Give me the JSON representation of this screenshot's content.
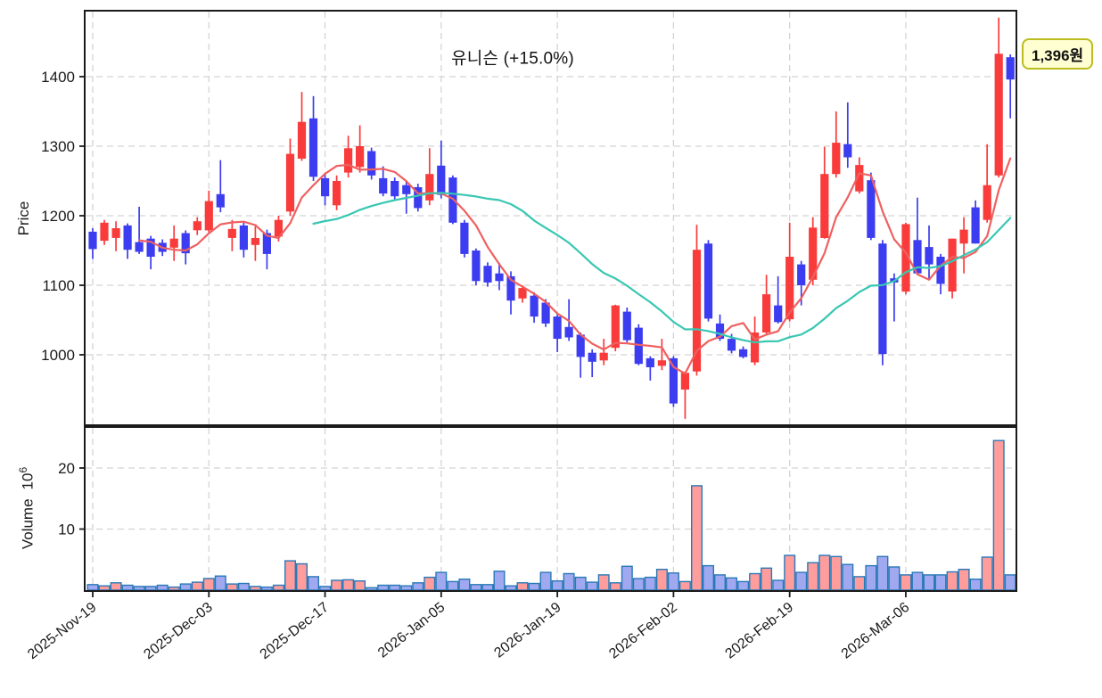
{
  "title": "유니슨 (+15.0%)",
  "price_badge": {
    "label": "1,396원"
  },
  "price_axis": {
    "label": "Price",
    "ticks": [
      1000,
      1100,
      1200,
      1300,
      1400
    ]
  },
  "volume_axis": {
    "label": "Volume",
    "scale_base": "10",
    "scale_exp": "6",
    "ticks": [
      10,
      20
    ]
  },
  "x_axis": {
    "tick_indices": [
      0,
      10,
      20,
      30,
      40,
      50,
      60,
      70
    ],
    "tick_labels": [
      "2025-Nov-19",
      "2025-Dec-03",
      "2025-Dec-17",
      "2026-Jan-05",
      "2026-Jan-19",
      "2026-Feb-02",
      "2026-Feb-19",
      "2026-Mar-06"
    ]
  },
  "colors": {
    "up": "#f93b3b",
    "down": "#3c3cf0",
    "vol_up_fill": "#ff9d9d",
    "vol_down_fill": "#a0a8f0",
    "vol_border": "#2878b8",
    "ma_fast": "#ef6060",
    "ma_slow": "#38c7b2",
    "grid": "#d4d4d4",
    "axis": "#1a1a1a",
    "badge_bg": "#ffffd2",
    "badge_border": "#bcbc20"
  },
  "chart_data": {
    "type": "candlestick",
    "title": "유니슨 (+15.0%)",
    "last_price_label": "1,396원",
    "grid": true,
    "price_ylim": [
      899,
      1495
    ],
    "volume_ylim_millions": [
      0,
      27
    ],
    "overlays": [
      {
        "name": "MA5",
        "window": 5,
        "color": "#ef6060"
      },
      {
        "name": "MA20",
        "window": 20,
        "color": "#38c7b2"
      }
    ],
    "dates": [
      "2025-11-19",
      "2025-11-20",
      "2025-11-21",
      "2025-11-24",
      "2025-11-25",
      "2025-11-26",
      "2025-11-27",
      "2025-11-28",
      "2025-12-01",
      "2025-12-02",
      "2025-12-03",
      "2025-12-04",
      "2025-12-05",
      "2025-12-08",
      "2025-12-09",
      "2025-12-10",
      "2025-12-11",
      "2025-12-12",
      "2025-12-15",
      "2025-12-16",
      "2025-12-17",
      "2025-12-18",
      "2025-12-19",
      "2025-12-22",
      "2025-12-23",
      "2025-12-24",
      "2025-12-26",
      "2025-12-29",
      "2025-12-30",
      "2026-01-02",
      "2026-01-05",
      "2026-01-06",
      "2026-01-07",
      "2026-01-08",
      "2026-01-09",
      "2026-01-12",
      "2026-01-13",
      "2026-01-14",
      "2026-01-15",
      "2026-01-16",
      "2026-01-19",
      "2026-01-20",
      "2026-01-21",
      "2026-01-22",
      "2026-01-23",
      "2026-01-26",
      "2026-01-27",
      "2026-01-28",
      "2026-01-29",
      "2026-01-30",
      "2026-02-02",
      "2026-02-03",
      "2026-02-04",
      "2026-02-05",
      "2026-02-06",
      "2026-02-09",
      "2026-02-10",
      "2026-02-11",
      "2026-02-12",
      "2026-02-13",
      "2026-02-19",
      "2026-02-20",
      "2026-02-23",
      "2026-02-24",
      "2026-02-25",
      "2026-02-26",
      "2026-02-27",
      "2026-03-03",
      "2026-03-04",
      "2026-03-05",
      "2026-03-06",
      "2026-03-09",
      "2026-03-10",
      "2026-03-11",
      "2026-03-12",
      "2026-03-13",
      "2026-03-16",
      "2026-03-17",
      "2026-03-18",
      "2026-03-19"
    ],
    "open": [
      1177,
      1164,
      1168,
      1186,
      1162,
      1167,
      1161,
      1154,
      1175,
      1179,
      1179,
      1231,
      1168,
      1186,
      1158,
      1175,
      1170,
      1206,
      1282,
      1340,
      1254,
      1215,
      1262,
      1270,
      1293,
      1254,
      1250,
      1244,
      1241,
      1222,
      1272,
      1255,
      1190,
      1150,
      1128,
      1117,
      1113,
      1081,
      1085,
      1075,
      1055,
      1040,
      1029,
      1003,
      992,
      1010,
      1062,
      1039,
      995,
      984,
      995,
      950,
      976,
      1160,
      1045,
      1023,
      1008,
      989,
      1032,
      1071,
      1051,
      1130,
      1108,
      1168,
      1260,
      1303,
      1235,
      1251,
      1160,
      1110,
      1091,
      1165,
      1155,
      1141,
      1091,
      1160,
      1212,
      1194,
      1258,
      1428
    ],
    "high": [
      1182,
      1194,
      1192,
      1189,
      1213,
      1171,
      1166,
      1186,
      1179,
      1198,
      1236,
      1280,
      1194,
      1190,
      1185,
      1180,
      1200,
      1311,
      1378,
      1372,
      1260,
      1258,
      1315,
      1330,
      1298,
      1271,
      1255,
      1250,
      1246,
      1297,
      1308,
      1258,
      1194,
      1153,
      1133,
      1132,
      1120,
      1100,
      1090,
      1080,
      1060,
      1080,
      1032,
      1008,
      1023,
      1072,
      1068,
      1044,
      998,
      1023,
      998,
      976,
      1187,
      1165,
      1058,
      1030,
      1012,
      1055,
      1115,
      1113,
      1190,
      1135,
      1198,
      1299,
      1350,
      1363,
      1284,
      1262,
      1165,
      1117,
      1190,
      1226,
      1186,
      1145,
      1167,
      1198,
      1222,
      1303,
      1485,
      1432
    ],
    "low": [
      1138,
      1158,
      1149,
      1138,
      1145,
      1123,
      1142,
      1135,
      1130,
      1172,
      1174,
      1205,
      1149,
      1140,
      1135,
      1123,
      1163,
      1200,
      1279,
      1250,
      1215,
      1208,
      1255,
      1262,
      1252,
      1228,
      1222,
      1203,
      1206,
      1215,
      1225,
      1188,
      1140,
      1100,
      1098,
      1093,
      1058,
      1075,
      1046,
      1040,
      1004,
      1020,
      967,
      968,
      985,
      1005,
      1018,
      985,
      963,
      978,
      925,
      908,
      970,
      1048,
      1020,
      1002,
      995,
      985,
      1028,
      1045,
      1048,
      1071,
      1100,
      1167,
      1255,
      1269,
      1232,
      1165,
      985,
      1048,
      1087,
      1117,
      1107,
      1087,
      1081,
      1117,
      1160,
      1190,
      1255,
      1340
    ],
    "close": [
      1152,
      1190,
      1182,
      1151,
      1148,
      1141,
      1148,
      1167,
      1146,
      1192,
      1221,
      1212,
      1181,
      1151,
      1168,
      1145,
      1194,
      1289,
      1335,
      1256,
      1228,
      1250,
      1297,
      1300,
      1258,
      1232,
      1228,
      1231,
      1211,
      1260,
      1230,
      1190,
      1145,
      1106,
      1104,
      1106,
      1078,
      1096,
      1055,
      1045,
      1023,
      1025,
      997,
      990,
      1003,
      1071,
      1021,
      987,
      982,
      992,
      930,
      974,
      1151,
      1052,
      1023,
      1006,
      997,
      1032,
      1087,
      1047,
      1141,
      1100,
      1183,
      1260,
      1305,
      1284,
      1273,
      1168,
      1001,
      1104,
      1188,
      1117,
      1130,
      1102,
      1167,
      1180,
      1160,
      1244,
      1433,
      1396
    ],
    "volume_millions": [
      0.9,
      0.7,
      1.2,
      0.8,
      0.6,
      0.6,
      0.8,
      0.5,
      1.0,
      1.3,
      1.9,
      2.3,
      1.0,
      1.1,
      0.6,
      0.5,
      0.8,
      4.8,
      4.3,
      2.2,
      0.6,
      1.6,
      1.7,
      1.5,
      0.4,
      0.8,
      0.8,
      0.7,
      1.2,
      2.1,
      2.9,
      1.4,
      1.8,
      0.9,
      0.9,
      3.1,
      0.7,
      1.2,
      1.1,
      2.9,
      1.5,
      2.7,
      2.1,
      1.3,
      2.5,
      1.2,
      3.9,
      1.9,
      2.1,
      3.4,
      2.8,
      1.4,
      17.1,
      4.0,
      2.5,
      2.0,
      1.4,
      2.7,
      3.6,
      1.6,
      5.7,
      2.9,
      4.5,
      5.7,
      5.5,
      4.2,
      2.2,
      4.0,
      5.5,
      3.8,
      2.5,
      2.9,
      2.5,
      2.5,
      3.0,
      3.4,
      1.8,
      5.4,
      24.5,
      2.5
    ]
  }
}
